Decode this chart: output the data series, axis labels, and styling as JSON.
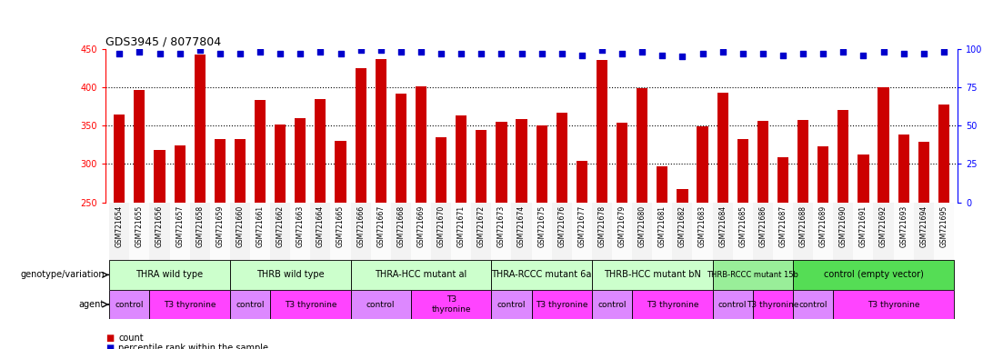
{
  "title": "GDS3945 / 8077804",
  "samples": [
    "GSM721654",
    "GSM721655",
    "GSM721656",
    "GSM721657",
    "GSM721658",
    "GSM721659",
    "GSM721660",
    "GSM721661",
    "GSM721662",
    "GSM721663",
    "GSM721664",
    "GSM721665",
    "GSM721666",
    "GSM721667",
    "GSM721668",
    "GSM721669",
    "GSM721670",
    "GSM721671",
    "GSM721672",
    "GSM721673",
    "GSM721674",
    "GSM721675",
    "GSM721676",
    "GSM721677",
    "GSM721678",
    "GSM721679",
    "GSM721680",
    "GSM721681",
    "GSM721682",
    "GSM721683",
    "GSM721684",
    "GSM721685",
    "GSM721686",
    "GSM721687",
    "GSM721688",
    "GSM721689",
    "GSM721690",
    "GSM721691",
    "GSM721692",
    "GSM721693",
    "GSM721694",
    "GSM721695"
  ],
  "counts": [
    365,
    397,
    318,
    324,
    443,
    333,
    333,
    384,
    352,
    360,
    385,
    330,
    425,
    437,
    392,
    401,
    335,
    363,
    344,
    355,
    359,
    350,
    367,
    304,
    435,
    354,
    399,
    297,
    267,
    349,
    393,
    333,
    356,
    309,
    357,
    323,
    370,
    312,
    400,
    338,
    329,
    377
  ],
  "percentiles": [
    97,
    98,
    97,
    97,
    99,
    97,
    97,
    98,
    97,
    97,
    98,
    97,
    99,
    99,
    98,
    98,
    97,
    97,
    97,
    97,
    97,
    97,
    97,
    96,
    99,
    97,
    98,
    96,
    95,
    97,
    98,
    97,
    97,
    96,
    97,
    97,
    98,
    96,
    98,
    97,
    97,
    98
  ],
  "ylim_left": [
    250,
    450
  ],
  "yticks_left": [
    250,
    300,
    350,
    400,
    450
  ],
  "ylim_right": [
    0,
    100
  ],
  "yticks_right": [
    0,
    25,
    50,
    75,
    100
  ],
  "bar_color": "#cc0000",
  "dot_color": "#0000cc",
  "genotype_groups": [
    {
      "label": "THRA wild type",
      "start": 0,
      "end": 5,
      "color": "#ccffcc"
    },
    {
      "label": "THRB wild type",
      "start": 6,
      "end": 11,
      "color": "#ccffcc"
    },
    {
      "label": "THRA-HCC mutant al",
      "start": 12,
      "end": 18,
      "color": "#ccffcc"
    },
    {
      "label": "THRA-RCCC mutant 6a",
      "start": 19,
      "end": 23,
      "color": "#ccffcc"
    },
    {
      "label": "THRB-HCC mutant bN",
      "start": 24,
      "end": 29,
      "color": "#ccffcc"
    },
    {
      "label": "THRB-RCCC mutant 15b",
      "start": 30,
      "end": 33,
      "color": "#99ee99"
    },
    {
      "label": "control (empty vector)",
      "start": 34,
      "end": 41,
      "color": "#55dd55"
    }
  ],
  "agent_groups": [
    {
      "label": "control",
      "start": 0,
      "end": 1,
      "color": "#dd88ff"
    },
    {
      "label": "T3 thyronine",
      "start": 2,
      "end": 5,
      "color": "#ff44ff"
    },
    {
      "label": "control",
      "start": 6,
      "end": 7,
      "color": "#dd88ff"
    },
    {
      "label": "T3 thyronine",
      "start": 8,
      "end": 11,
      "color": "#ff44ff"
    },
    {
      "label": "control",
      "start": 12,
      "end": 14,
      "color": "#dd88ff"
    },
    {
      "label": "T3\nthyronine",
      "start": 15,
      "end": 18,
      "color": "#ff44ff"
    },
    {
      "label": "control",
      "start": 19,
      "end": 20,
      "color": "#dd88ff"
    },
    {
      "label": "T3 thyronine",
      "start": 21,
      "end": 23,
      "color": "#ff44ff"
    },
    {
      "label": "control",
      "start": 24,
      "end": 25,
      "color": "#dd88ff"
    },
    {
      "label": "T3 thyronine",
      "start": 26,
      "end": 29,
      "color": "#ff44ff"
    },
    {
      "label": "control",
      "start": 30,
      "end": 31,
      "color": "#dd88ff"
    },
    {
      "label": "T3 thyronine",
      "start": 32,
      "end": 33,
      "color": "#ff44ff"
    },
    {
      "label": "control",
      "start": 34,
      "end": 35,
      "color": "#dd88ff"
    },
    {
      "label": "T3 thyronine",
      "start": 36,
      "end": 41,
      "color": "#ff44ff"
    }
  ],
  "row_label_genotype": "genotype/variation",
  "row_label_agent": "agent",
  "legend_count_color": "#cc0000",
  "legend_percentile_color": "#0000cc",
  "grid_lines": [
    300,
    350,
    400
  ]
}
